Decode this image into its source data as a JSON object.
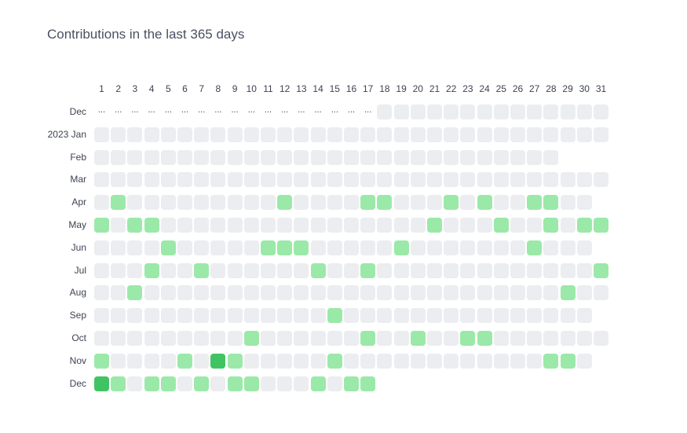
{
  "title": "Contributions in the last 365 days",
  "day_labels": [
    "1",
    "2",
    "3",
    "4",
    "5",
    "6",
    "7",
    "8",
    "9",
    "10",
    "11",
    "12",
    "13",
    "14",
    "15",
    "16",
    "17",
    "18",
    "19",
    "20",
    "21",
    "22",
    "23",
    "24",
    "25",
    "26",
    "27",
    "28",
    "29",
    "30",
    "31"
  ],
  "colors": {
    "empty": "#ebedf0",
    "level1": "#9be9a8",
    "level2": "#40c463",
    "level3": "#30a14e"
  },
  "months": [
    {
      "label": "Dec",
      "days": 31,
      "ellipsis_until": 17,
      "levels": {}
    },
    {
      "label": "2023 Jan",
      "days": 31,
      "levels": {}
    },
    {
      "label": "Feb",
      "days": 28,
      "levels": {}
    },
    {
      "label": "Mar",
      "days": 31,
      "levels": {}
    },
    {
      "label": "Apr",
      "days": 30,
      "levels": {
        "2": 1,
        "12": 1,
        "17": 1,
        "18": 1,
        "22": 1,
        "24": 1,
        "27": 1,
        "28": 1
      }
    },
    {
      "label": "May",
      "days": 31,
      "levels": {
        "1": 1,
        "3": 1,
        "4": 1,
        "21": 1,
        "25": 1,
        "28": 1,
        "30": 1,
        "31": 1
      }
    },
    {
      "label": "Jun",
      "days": 30,
      "levels": {
        "5": 1,
        "11": 1,
        "12": 1,
        "13": 1,
        "19": 1,
        "27": 1
      }
    },
    {
      "label": "Jul",
      "days": 31,
      "levels": {
        "4": 1,
        "7": 1,
        "14": 1,
        "17": 1,
        "31": 1
      }
    },
    {
      "label": "Aug",
      "days": 31,
      "levels": {
        "3": 1,
        "29": 1
      }
    },
    {
      "label": "Sep",
      "days": 30,
      "levels": {
        "15": 1
      }
    },
    {
      "label": "Oct",
      "days": 31,
      "levels": {
        "10": 1,
        "17": 1,
        "20": 1,
        "23": 1,
        "24": 1
      }
    },
    {
      "label": "Nov",
      "days": 30,
      "levels": {
        "1": 1,
        "6": 1,
        "8": 2,
        "9": 1,
        "15": 1,
        "28": 1,
        "29": 1
      }
    },
    {
      "label": "Dec",
      "days": 17,
      "levels": {
        "1": 2,
        "2": 1,
        "4": 1,
        "5": 1,
        "7": 1,
        "9": 1,
        "10": 1,
        "14": 1,
        "16": 1,
        "17": 1
      }
    }
  ]
}
